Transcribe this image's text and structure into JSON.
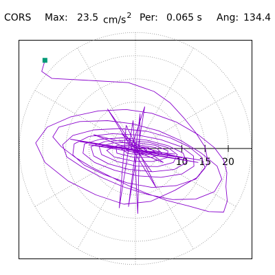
{
  "header": {
    "station": "CORS",
    "max_label": "Max:",
    "max_value": "23.5",
    "max_unit": "cm/s",
    "max_unit_exp": "2",
    "per_label": "Per:",
    "per_value": "0.065 s",
    "ang_label": "Ang:",
    "ang_value": "134.4"
  },
  "chart_data": {
    "type": "polar-orbit",
    "title": "",
    "xlabel": "",
    "ylabel": "",
    "rings": [
      5,
      10,
      15,
      20,
      25
    ],
    "tick_labels": [
      "10",
      "15",
      "20"
    ],
    "tick_values": [
      10,
      15,
      20
    ],
    "xlim": [
      -23,
      23
    ],
    "ylim": [
      -23,
      23
    ],
    "grid": true,
    "orbit_color": "#8800cc",
    "grid_color": "#888888",
    "start_marker_color": "#009977",
    "start_point": [
      -19.5,
      19.0
    ],
    "orbit": [
      [
        -19.5,
        19.0
      ],
      [
        -20.2,
        16.6
      ],
      [
        -18.0,
        15.1
      ],
      [
        -8.5,
        14.6
      ],
      [
        -1.5,
        14.2
      ],
      [
        4.0,
        12.3
      ],
      [
        7.5,
        9.8
      ],
      [
        10.5,
        6.5
      ],
      [
        13.0,
        3.4
      ],
      [
        15.0,
        0.3
      ],
      [
        15.7,
        -3.2
      ],
      [
        13.2,
        -6.3
      ],
      [
        8.5,
        -9.0
      ],
      [
        3.3,
        -11.4
      ],
      [
        -2.5,
        -12.0
      ],
      [
        -8.5,
        -10.0
      ],
      [
        -14.5,
        -7.0
      ],
      [
        -19.5,
        -3.0
      ],
      [
        -21.5,
        1.2
      ],
      [
        -19.0,
        4.6
      ],
      [
        -14.0,
        6.8
      ],
      [
        -8.0,
        8.1
      ],
      [
        -2.0,
        8.4
      ],
      [
        3.5,
        7.6
      ],
      [
        8.8,
        5.7
      ],
      [
        13.5,
        3.0
      ],
      [
        17.0,
        0.2
      ],
      [
        19.0,
        -2.5
      ],
      [
        19.7,
        -5.2
      ],
      [
        19.5,
        -8.2
      ],
      [
        19.8,
        -11.3
      ],
      [
        19.0,
        -13.7
      ],
      [
        15.8,
        -13.6
      ],
      [
        11.5,
        -12.4
      ],
      [
        6.8,
        -11.2
      ],
      [
        2.5,
        -9.7
      ],
      [
        -1.5,
        -8.0
      ],
      [
        -5.5,
        -6.0
      ],
      [
        -9.5,
        -4.0
      ],
      [
        -13.0,
        -1.9
      ],
      [
        -16.0,
        0.4
      ],
      [
        -17.8,
        2.5
      ],
      [
        -16.5,
        4.6
      ],
      [
        -12.0,
        5.8
      ],
      [
        -6.0,
        6.0
      ],
      [
        -0.5,
        5.3
      ],
      [
        5.0,
        3.8
      ],
      [
        10.0,
        1.6
      ],
      [
        14.2,
        -1.0
      ],
      [
        17.6,
        -3.8
      ],
      [
        18.6,
        -6.6
      ],
      [
        17.0,
        -9.3
      ],
      [
        13.0,
        -10.9
      ],
      [
        8.0,
        -11.0
      ],
      [
        2.6,
        -9.9
      ],
      [
        -2.5,
        -8.3
      ],
      [
        -7.2,
        -6.3
      ],
      [
        -11.5,
        -4.0
      ],
      [
        -14.8,
        -1.8
      ],
      [
        -15.7,
        0.8
      ],
      [
        -13.5,
        2.8
      ],
      [
        -9.0,
        4.0
      ],
      [
        -3.5,
        4.3
      ],
      [
        2.5,
        3.7
      ],
      [
        7.5,
        2.3
      ],
      [
        11.5,
        0.4
      ],
      [
        14.2,
        -1.8
      ],
      [
        15.0,
        -4.2
      ],
      [
        13.0,
        -6.6
      ],
      [
        8.8,
        -8.0
      ],
      [
        3.6,
        -8.4
      ],
      [
        -1.8,
        -7.4
      ],
      [
        -6.8,
        -5.6
      ],
      [
        -11.0,
        -3.6
      ],
      [
        -13.5,
        -1.4
      ],
      [
        -13.2,
        1.0
      ],
      [
        -10.0,
        2.6
      ],
      [
        -5.0,
        3.2
      ],
      [
        0.5,
        2.9
      ],
      [
        5.5,
        1.9
      ],
      [
        9.8,
        0.4
      ],
      [
        12.5,
        -1.6
      ],
      [
        12.6,
        -3.8
      ],
      [
        10.0,
        -5.5
      ],
      [
        5.5,
        -6.2
      ],
      [
        0.5,
        -5.9
      ],
      [
        -4.5,
        -4.7
      ],
      [
        -8.8,
        -3.0
      ],
      [
        -11.3,
        -1.0
      ],
      [
        -11.0,
        1.0
      ],
      [
        -7.6,
        2.0
      ],
      [
        -2.8,
        2.3
      ],
      [
        2.4,
        1.8
      ],
      [
        7.0,
        0.6
      ],
      [
        10.3,
        -1.0
      ],
      [
        11.0,
        -3.0
      ],
      [
        8.4,
        -4.5
      ],
      [
        3.7,
        -5.0
      ],
      [
        -1.4,
        -4.5
      ],
      [
        -5.8,
        -3.3
      ],
      [
        -9.0,
        -1.6
      ],
      [
        -9.6,
        0.4
      ],
      [
        -6.6,
        1.5
      ],
      [
        -1.8,
        1.8
      ],
      [
        3.0,
        1.3
      ],
      [
        7.0,
        0.2
      ],
      [
        9.0,
        -1.3
      ],
      [
        8.2,
        -3.0
      ],
      [
        4.8,
        -3.9
      ],
      [
        0.3,
        -3.8
      ],
      [
        -4.0,
        -2.8
      ],
      [
        -7.3,
        -1.3
      ],
      [
        -7.8,
        0.4
      ],
      [
        -4.8,
        1.2
      ],
      [
        -0.3,
        1.3
      ],
      [
        4.2,
        0.7
      ],
      [
        7.0,
        -0.5
      ],
      [
        6.8,
        -2.0
      ],
      [
        3.7,
        -2.8
      ],
      [
        -0.6,
        -2.7
      ],
      [
        -4.6,
        -1.8
      ],
      [
        -6.2,
        -0.4
      ],
      [
        -3.8,
        0.7
      ],
      [
        0.5,
        0.8
      ],
      [
        4.4,
        0.2
      ],
      [
        5.7,
        -1.0
      ],
      [
        3.6,
        -1.9
      ],
      [
        -0.4,
        -1.9
      ],
      [
        -4.0,
        -1.0
      ],
      [
        -4.2,
        0.3
      ],
      [
        -1.0,
        0.6
      ],
      [
        2.8,
        0.2
      ],
      [
        4.3,
        -0.8
      ],
      [
        2.0,
        -1.4
      ],
      [
        -1.5,
        -1.1
      ],
      [
        -3.0,
        -0.2
      ],
      [
        -0.6,
        0.4
      ],
      [
        2.3,
        -0.1
      ],
      [
        2.6,
        -0.9
      ],
      [
        0.0,
        -1.0
      ],
      [
        -2.0,
        -0.3
      ],
      [
        0.0,
        0.2
      ],
      [
        1.6,
        -0.4
      ],
      [
        0.3,
        -0.7
      ],
      [
        -1.0,
        -0.2
      ],
      [
        2.0,
        9.0
      ],
      [
        -1.5,
        -12.5
      ],
      [
        1.0,
        7.5
      ],
      [
        0.5,
        -14.0
      ],
      [
        -0.5,
        6.0
      ],
      [
        -3.5,
        -12.8
      ],
      [
        -2.0,
        5.0
      ],
      [
        4.5,
        -8.5
      ],
      [
        -6.0,
        8.5
      ],
      [
        3.5,
        -5.0
      ],
      [
        0.0,
        0.0
      ],
      [
        -3.0,
        3.2
      ],
      [
        6.0,
        -3.0
      ],
      [
        -9.0,
        3.0
      ],
      [
        10.0,
        -2.0
      ],
      [
        -12.0,
        1.5
      ],
      [
        14.0,
        -2.5
      ],
      [
        -14.0,
        2.0
      ],
      [
        13.5,
        -3.0
      ],
      [
        -10.0,
        0.8
      ],
      [
        8.5,
        -1.2
      ],
      [
        -6.0,
        0.3
      ],
      [
        4.0,
        -0.8
      ],
      [
        -2.0,
        0.0
      ],
      [
        0.5,
        -0.3
      ]
    ]
  }
}
